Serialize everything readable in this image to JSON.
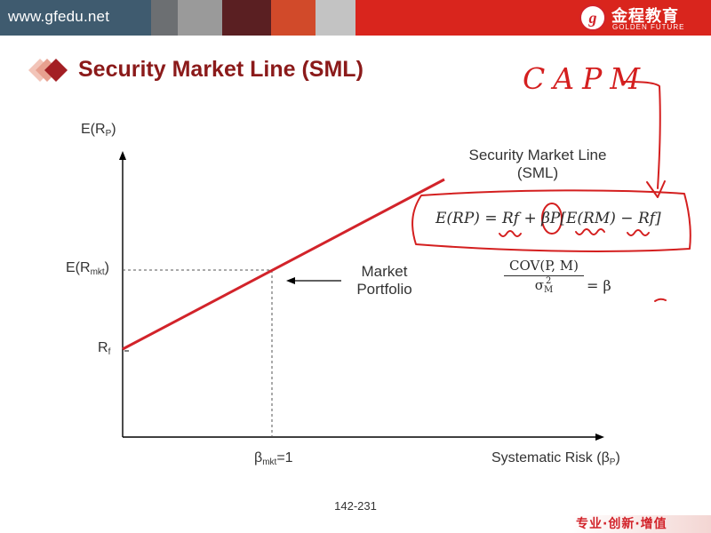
{
  "header": {
    "site_url": "www.gfedu.net",
    "logo_cn": "金程教育",
    "logo_en": "GOLDEN FUTURE",
    "logo_mark": "g",
    "stripe_colors": [
      "#3f5b6f",
      "#6c6f72",
      "#9a9a9a",
      "#5a1f22",
      "#d14a2a",
      "#c3c3c3",
      "#d9251d"
    ]
  },
  "slide": {
    "title": "Security Market Line (SML)",
    "page_number": "142-231"
  },
  "graph": {
    "y_axis_label": "E(R",
    "y_axis_sub": "P",
    "y_axis_close": ")",
    "emkt_label": "E(R",
    "emkt_sub": "mkt",
    "emkt_close": ")",
    "rf_label": "R",
    "rf_sub": "f",
    "beta_label": "β",
    "beta_sub": "mkt",
    "beta_value": "=1",
    "x_axis_label": "Systematic Risk (β",
    "x_axis_sub": "P",
    "x_axis_close": ")",
    "sml_label_line1": "Security Market Line",
    "sml_label_line2": "(SML)",
    "market_label_line1": "Market",
    "market_label_line2": "Portfolio",
    "line_color": "#d2232a"
  },
  "formula": {
    "capm": "E(RP) = Rf + βP[E(RM) − Rf]",
    "beta_numerator": "COV(P, M)",
    "beta_denominator": "σ",
    "beta_denominator_sup": "2",
    "beta_denominator_sub": "M",
    "beta_result": "= β"
  },
  "annotations": {
    "handwritten": "CAPM",
    "ink_color": "#d41f1f"
  },
  "footer": {
    "slogan": "专业·创新·增值"
  }
}
